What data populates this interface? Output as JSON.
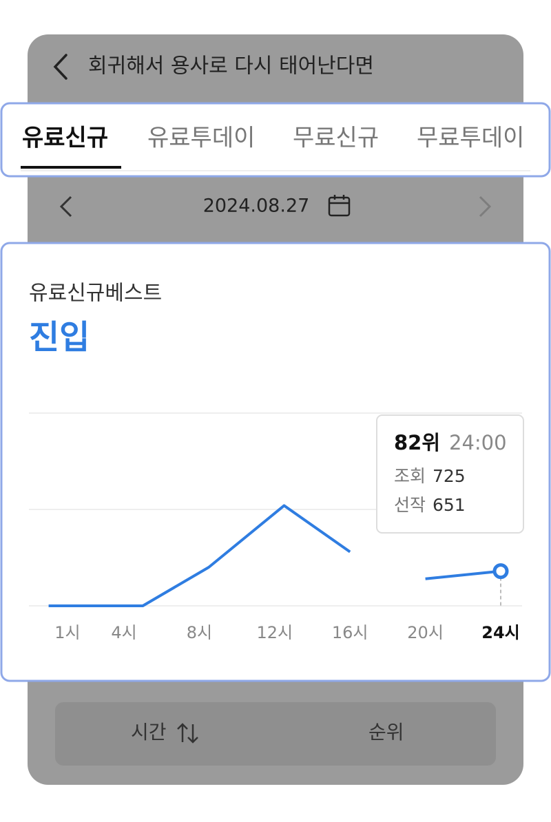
{
  "header": {
    "title": "회귀해서 용사로 다시 태어난다면"
  },
  "tabs": [
    "유료신규",
    "유료투데이",
    "무료신규",
    "무료투데이"
  ],
  "date": "2024.08.27",
  "card": {
    "subtitle": "유료신규베스트",
    "status": "진입"
  },
  "chart_data": {
    "type": "line",
    "color": "#2f7de1",
    "y_reversed": true,
    "x": [
      0,
      5,
      8.5,
      12.5,
      16,
      18,
      20,
      24
    ],
    "values": [
      100,
      100,
      80,
      48,
      72,
      null,
      86,
      82
    ],
    "xlim": [
      0,
      24
    ],
    "ylim": [
      0,
      100
    ],
    "xticks": [
      {
        "value": 1,
        "label": "1시"
      },
      {
        "value": 4,
        "label": "4시"
      },
      {
        "value": 8,
        "label": "8시"
      },
      {
        "value": 12,
        "label": "12시"
      },
      {
        "value": 16,
        "label": "16시"
      },
      {
        "value": 20,
        "label": "20시"
      },
      {
        "value": 24,
        "label": "24시"
      }
    ],
    "tooltip": {
      "rank": "82위",
      "time": "24:00",
      "views_label": "조회",
      "views": 725,
      "picks_label": "선작",
      "picks": 651
    }
  },
  "footer": {
    "sort_time": "시간",
    "sort_rank": "순위"
  }
}
